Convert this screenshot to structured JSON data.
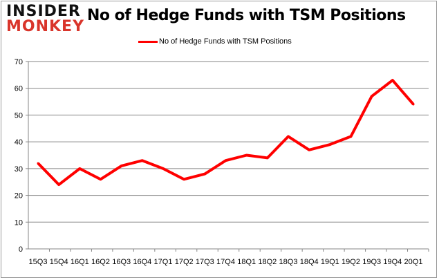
{
  "logo": {
    "line1": "INSIDER",
    "line2": "MONKEY"
  },
  "chart_data": {
    "type": "line",
    "title": "No of Hedge Funds with TSM Positions",
    "xlabel": "",
    "ylabel": "",
    "ylim": [
      0,
      70
    ],
    "yticks": [
      0,
      10,
      20,
      30,
      40,
      50,
      60,
      70
    ],
    "grid": true,
    "legend_position": "top",
    "color": "#ff0000",
    "categories": [
      "15Q3",
      "15Q4",
      "16Q1",
      "16Q2",
      "16Q3",
      "16Q4",
      "17Q1",
      "17Q2",
      "17Q3",
      "17Q4",
      "18Q1",
      "18Q2",
      "18Q3",
      "18Q4",
      "19Q1",
      "19Q2",
      "19Q3",
      "19Q4",
      "20Q1"
    ],
    "series": [
      {
        "name": "No of Hedge Funds with TSM Positions",
        "values": [
          32,
          24,
          30,
          26,
          31,
          33,
          30,
          26,
          28,
          33,
          35,
          34,
          42,
          37,
          39,
          42,
          57,
          63,
          54
        ]
      }
    ]
  }
}
